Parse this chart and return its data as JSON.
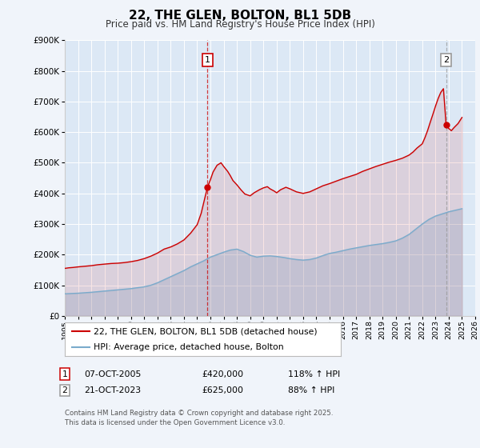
{
  "title": "22, THE GLEN, BOLTON, BL1 5DB",
  "subtitle": "Price paid vs. HM Land Registry's House Price Index (HPI)",
  "background_color": "#f0f4fa",
  "plot_bg_color": "#dce8f5",
  "ylim": [
    0,
    900000
  ],
  "xlim": [
    1995,
    2026
  ],
  "yticks": [
    0,
    100000,
    200000,
    300000,
    400000,
    500000,
    600000,
    700000,
    800000,
    900000
  ],
  "red_color": "#cc0000",
  "blue_color": "#7aabcc",
  "marker1_x": 2005.77,
  "marker1_y": 420000,
  "marker2_x": 2023.8,
  "marker2_y": 625000,
  "vline1_x": 2005.77,
  "vline2_x": 2023.8,
  "legend_label_red": "22, THE GLEN, BOLTON, BL1 5DB (detached house)",
  "legend_label_blue": "HPI: Average price, detached house, Bolton",
  "annotation1_label": "1",
  "annotation2_label": "2",
  "table_row1": [
    "1",
    "07-OCT-2005",
    "£420,000",
    "118% ↑ HPI"
  ],
  "table_row2": [
    "2",
    "21-OCT-2023",
    "£625,000",
    "88% ↑ HPI"
  ],
  "footer_text": "Contains HM Land Registry data © Crown copyright and database right 2025.\nThis data is licensed under the Open Government Licence v3.0.",
  "red_data": [
    [
      1995.0,
      155000
    ],
    [
      1995.3,
      157000
    ],
    [
      1995.6,
      158000
    ],
    [
      1996.0,
      160000
    ],
    [
      1996.5,
      162000
    ],
    [
      1997.0,
      164000
    ],
    [
      1997.5,
      167000
    ],
    [
      1998.0,
      169000
    ],
    [
      1998.5,
      171000
    ],
    [
      1999.0,
      172000
    ],
    [
      1999.5,
      174000
    ],
    [
      2000.0,
      177000
    ],
    [
      2000.5,
      181000
    ],
    [
      2001.0,
      187000
    ],
    [
      2001.5,
      195000
    ],
    [
      2002.0,
      205000
    ],
    [
      2002.5,
      218000
    ],
    [
      2003.0,
      225000
    ],
    [
      2003.5,
      235000
    ],
    [
      2004.0,
      248000
    ],
    [
      2004.5,
      270000
    ],
    [
      2005.0,
      298000
    ],
    [
      2005.3,
      335000
    ],
    [
      2005.77,
      420000
    ],
    [
      2006.0,
      445000
    ],
    [
      2006.2,
      470000
    ],
    [
      2006.5,
      492000
    ],
    [
      2006.8,
      500000
    ],
    [
      2007.0,
      488000
    ],
    [
      2007.3,
      472000
    ],
    [
      2007.5,
      458000
    ],
    [
      2007.7,
      442000
    ],
    [
      2008.0,
      428000
    ],
    [
      2008.3,
      412000
    ],
    [
      2008.6,
      398000
    ],
    [
      2009.0,
      392000
    ],
    [
      2009.3,
      402000
    ],
    [
      2009.7,
      412000
    ],
    [
      2010.0,
      418000
    ],
    [
      2010.3,
      422000
    ],
    [
      2010.5,
      415000
    ],
    [
      2010.8,
      408000
    ],
    [
      2011.0,
      402000
    ],
    [
      2011.3,
      412000
    ],
    [
      2011.7,
      420000
    ],
    [
      2012.0,
      415000
    ],
    [
      2012.5,
      405000
    ],
    [
      2013.0,
      400000
    ],
    [
      2013.5,
      405000
    ],
    [
      2014.0,
      415000
    ],
    [
      2014.5,
      425000
    ],
    [
      2015.0,
      432000
    ],
    [
      2015.5,
      440000
    ],
    [
      2016.0,
      448000
    ],
    [
      2016.5,
      455000
    ],
    [
      2017.0,
      462000
    ],
    [
      2017.5,
      472000
    ],
    [
      2018.0,
      480000
    ],
    [
      2018.5,
      488000
    ],
    [
      2019.0,
      495000
    ],
    [
      2019.5,
      502000
    ],
    [
      2020.0,
      508000
    ],
    [
      2020.5,
      515000
    ],
    [
      2021.0,
      525000
    ],
    [
      2021.3,
      535000
    ],
    [
      2021.6,
      548000
    ],
    [
      2022.0,
      562000
    ],
    [
      2022.2,
      582000
    ],
    [
      2022.4,
      605000
    ],
    [
      2022.6,
      632000
    ],
    [
      2022.8,
      658000
    ],
    [
      2023.0,
      685000
    ],
    [
      2023.2,
      710000
    ],
    [
      2023.4,
      730000
    ],
    [
      2023.6,
      742000
    ],
    [
      2023.8,
      625000
    ],
    [
      2024.0,
      612000
    ],
    [
      2024.2,
      605000
    ],
    [
      2024.4,
      615000
    ],
    [
      2024.7,
      628000
    ],
    [
      2025.0,
      648000
    ]
  ],
  "blue_data": [
    [
      1995.0,
      72000
    ],
    [
      1995.5,
      73000
    ],
    [
      1996.0,
      74000
    ],
    [
      1996.5,
      75500
    ],
    [
      1997.0,
      77000
    ],
    [
      1997.5,
      79000
    ],
    [
      1998.0,
      81000
    ],
    [
      1998.5,
      83000
    ],
    [
      1999.0,
      85000
    ],
    [
      1999.5,
      87000
    ],
    [
      2000.0,
      89000
    ],
    [
      2000.5,
      92000
    ],
    [
      2001.0,
      95000
    ],
    [
      2001.5,
      100000
    ],
    [
      2002.0,
      108000
    ],
    [
      2002.5,
      118000
    ],
    [
      2003.0,
      128000
    ],
    [
      2003.5,
      138000
    ],
    [
      2004.0,
      148000
    ],
    [
      2004.5,
      160000
    ],
    [
      2005.0,
      170000
    ],
    [
      2005.5,
      180000
    ],
    [
      2006.0,
      192000
    ],
    [
      2006.5,
      200000
    ],
    [
      2007.0,
      208000
    ],
    [
      2007.5,
      215000
    ],
    [
      2008.0,
      218000
    ],
    [
      2008.5,
      210000
    ],
    [
      2009.0,
      198000
    ],
    [
      2009.5,
      192000
    ],
    [
      2010.0,
      195000
    ],
    [
      2010.5,
      196000
    ],
    [
      2011.0,
      194000
    ],
    [
      2011.5,
      191000
    ],
    [
      2012.0,
      187000
    ],
    [
      2012.5,
      184000
    ],
    [
      2013.0,
      182000
    ],
    [
      2013.5,
      184000
    ],
    [
      2014.0,
      189000
    ],
    [
      2014.5,
      197000
    ],
    [
      2015.0,
      204000
    ],
    [
      2015.5,
      208000
    ],
    [
      2016.0,
      213000
    ],
    [
      2016.5,
      218000
    ],
    [
      2017.0,
      222000
    ],
    [
      2017.5,
      226000
    ],
    [
      2018.0,
      230000
    ],
    [
      2018.5,
      233000
    ],
    [
      2019.0,
      236000
    ],
    [
      2019.5,
      240000
    ],
    [
      2020.0,
      245000
    ],
    [
      2020.5,
      254000
    ],
    [
      2021.0,
      266000
    ],
    [
      2021.5,
      283000
    ],
    [
      2022.0,
      300000
    ],
    [
      2022.5,
      315000
    ],
    [
      2023.0,
      326000
    ],
    [
      2023.5,
      333000
    ],
    [
      2023.8,
      337000
    ],
    [
      2024.0,
      340000
    ],
    [
      2024.5,
      345000
    ],
    [
      2025.0,
      350000
    ]
  ]
}
